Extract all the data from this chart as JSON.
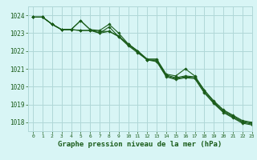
{
  "background_color": "#d8f5f5",
  "grid_color": "#b0d8d8",
  "line_color": "#1a5c1a",
  "title": "Graphe pression niveau de la mer (hPa)",
  "ylim": [
    1017.5,
    1024.5
  ],
  "xlim": [
    -0.5,
    23
  ],
  "yticks": [
    1018,
    1019,
    1020,
    1021,
    1022,
    1023,
    1024
  ],
  "xticks": [
    0,
    1,
    2,
    3,
    4,
    5,
    6,
    7,
    8,
    9,
    10,
    11,
    12,
    13,
    14,
    15,
    16,
    17,
    18,
    19,
    20,
    21,
    22,
    23
  ],
  "series": [
    [
      1023.9,
      1023.9,
      1023.5,
      1023.2,
      1023.2,
      1023.7,
      1023.2,
      1023.0,
      1023.35,
      1022.8,
      1022.4,
      1022.0,
      1021.55,
      1021.55,
      1020.7,
      1020.6,
      1021.0,
      1020.6,
      1019.8,
      1019.2,
      1018.7,
      1018.4,
      1018.1,
      1018.0
    ],
    [
      1023.9,
      1023.9,
      1023.5,
      1023.2,
      1023.2,
      1023.7,
      1023.2,
      1023.15,
      1023.5,
      1023.0,
      1022.4,
      1022.0,
      1021.5,
      1021.5,
      1020.65,
      1020.5,
      1020.6,
      1020.55,
      1019.8,
      1019.15,
      1018.65,
      1018.35,
      1018.05,
      1017.95
    ],
    [
      1023.9,
      1023.9,
      1023.5,
      1023.2,
      1023.2,
      1023.15,
      1023.15,
      1023.1,
      1023.1,
      1022.85,
      1022.35,
      1021.95,
      1021.5,
      1021.45,
      1020.6,
      1020.45,
      1020.55,
      1020.5,
      1019.7,
      1019.1,
      1018.6,
      1018.3,
      1018.0,
      1017.9
    ],
    [
      1023.9,
      1023.9,
      1023.5,
      1023.2,
      1023.2,
      1023.15,
      1023.15,
      1023.0,
      1023.1,
      1022.8,
      1022.3,
      1021.9,
      1021.5,
      1021.4,
      1020.55,
      1020.4,
      1020.5,
      1020.45,
      1019.65,
      1019.05,
      1018.55,
      1018.25,
      1017.95,
      1017.85
    ]
  ]
}
